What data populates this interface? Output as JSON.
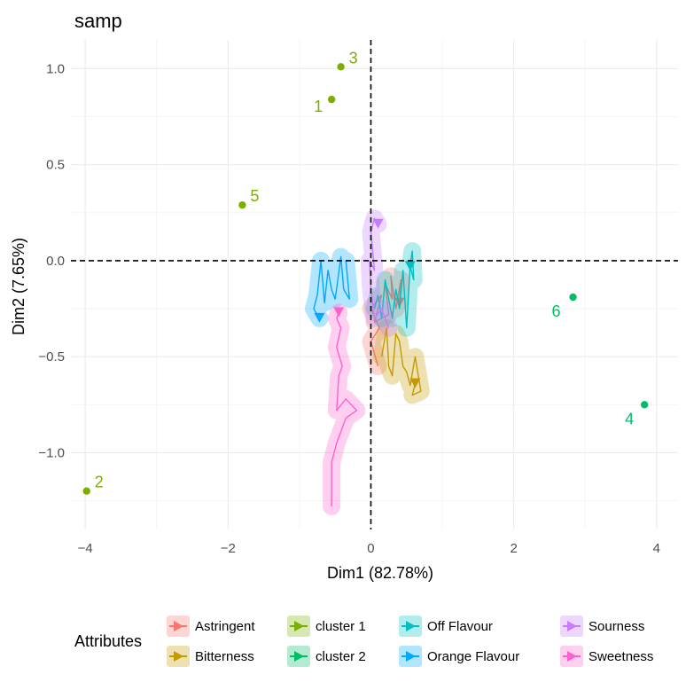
{
  "chart_data": {
    "type": "scatter",
    "title": "samp",
    "xlabel": "Dim1 (82.78%)",
    "ylabel": "Dim2 (7.65%)",
    "xlim": [
      -4.2,
      4.3
    ],
    "ylim": [
      -1.4,
      1.15
    ],
    "x_ticks": [
      -4,
      -2,
      0,
      2,
      4
    ],
    "x_tick_labels": [
      "−4",
      "−2",
      "0",
      "2",
      "4"
    ],
    "y_ticks": [
      -1.0,
      -0.5,
      0.0,
      0.5,
      1.0
    ],
    "y_tick_labels": [
      "−1.0",
      "−0.5",
      "0.0",
      "0.5",
      "1.0"
    ],
    "grid": true,
    "reference_lines": {
      "x": 0,
      "y": 0,
      "style": "dashed"
    },
    "legend_title": "Attributes",
    "legend_position": "bottom",
    "colors": {
      "Astringent": "#F8766D",
      "Bitterness": "#C49A00",
      "cluster 1": "#7CAE00",
      "cluster 2": "#00BE67",
      "Off Flavour": "#00BFC4",
      "Orange Flavour": "#00A9FF",
      "Sourness": "#C77CFF",
      "Sweetness": "#FF61CC"
    },
    "legend": [
      "Astringent",
      "Bitterness",
      "cluster 1",
      "cluster 2",
      "Off Flavour",
      "Orange Flavour",
      "Sourness",
      "Sweetness"
    ],
    "points": [
      {
        "label": "1",
        "x": -0.55,
        "y": 0.84,
        "group": "cluster 1"
      },
      {
        "label": "3",
        "x": -0.42,
        "y": 1.01,
        "group": "cluster 1"
      },
      {
        "label": "5",
        "x": -1.8,
        "y": 0.29,
        "group": "cluster 1"
      },
      {
        "label": "2",
        "x": -3.98,
        "y": -1.2,
        "group": "cluster 1"
      },
      {
        "label": "6",
        "x": 2.83,
        "y": -0.19,
        "group": "cluster 2"
      },
      {
        "label": "4",
        "x": 3.83,
        "y": -0.75,
        "group": "cluster 2"
      }
    ],
    "trajectories": [
      {
        "name": "Astringent",
        "end": [
          0.4,
          -0.22
        ],
        "path": [
          [
            0.1,
            -0.55
          ],
          [
            0.0,
            -0.42
          ],
          [
            0.12,
            -0.35
          ],
          [
            0.0,
            -0.25
          ],
          [
            0.15,
            -0.18
          ],
          [
            0.05,
            -0.32
          ],
          [
            0.25,
            -0.28
          ],
          [
            0.2,
            -0.12
          ],
          [
            0.3,
            -0.2
          ],
          [
            0.28,
            -0.08
          ],
          [
            0.35,
            -0.25
          ],
          [
            0.42,
            -0.1
          ],
          [
            0.4,
            -0.22
          ]
        ]
      },
      {
        "name": "Bitterness",
        "end": [
          0.62,
          -0.64
        ],
        "path": [
          [
            0.15,
            -0.5
          ],
          [
            0.22,
            -0.35
          ],
          [
            0.25,
            -0.55
          ],
          [
            0.3,
            -0.6
          ],
          [
            0.35,
            -0.38
          ],
          [
            0.4,
            -0.42
          ],
          [
            0.45,
            -0.55
          ],
          [
            0.5,
            -0.58
          ],
          [
            0.55,
            -0.65
          ],
          [
            0.62,
            -0.5
          ],
          [
            0.7,
            -0.68
          ],
          [
            0.58,
            -0.7
          ],
          [
            0.62,
            -0.64
          ]
        ]
      },
      {
        "name": "Off Flavour",
        "end": [
          0.55,
          -0.03
        ],
        "path": [
          [
            0.05,
            -0.25
          ],
          [
            0.1,
            -0.18
          ],
          [
            0.15,
            -0.3
          ],
          [
            0.2,
            -0.1
          ],
          [
            0.3,
            -0.3
          ],
          [
            0.35,
            -0.15
          ],
          [
            0.4,
            -0.25
          ],
          [
            0.45,
            -0.05
          ],
          [
            0.5,
            -0.35
          ],
          [
            0.55,
            -0.02
          ],
          [
            0.58,
            0.05
          ],
          [
            0.6,
            -0.1
          ],
          [
            0.55,
            -0.03
          ]
        ]
      },
      {
        "name": "Orange Flavour",
        "end": [
          -0.72,
          -0.3
        ],
        "path": [
          [
            -0.35,
            -0.0
          ],
          [
            -0.3,
            -0.2
          ],
          [
            -0.38,
            -0.15
          ],
          [
            -0.42,
            0.02
          ],
          [
            -0.5,
            -0.2
          ],
          [
            -0.55,
            -0.15
          ],
          [
            -0.6,
            -0.05
          ],
          [
            -0.65,
            -0.22
          ],
          [
            -0.7,
            0.0
          ],
          [
            -0.75,
            -0.18
          ],
          [
            -0.8,
            -0.25
          ],
          [
            -0.72,
            -0.3
          ]
        ]
      },
      {
        "name": "Sourness",
        "end": [
          0.1,
          0.19
        ],
        "path": [
          [
            0.25,
            -0.35
          ],
          [
            0.15,
            -0.25
          ],
          [
            0.05,
            -0.3
          ],
          [
            0.0,
            -0.15
          ],
          [
            -0.02,
            0.0
          ],
          [
            0.05,
            -0.05
          ],
          [
            0.0,
            0.15
          ],
          [
            0.05,
            0.22
          ],
          [
            0.1,
            0.19
          ]
        ]
      },
      {
        "name": "Sweetness",
        "end": [
          -0.45,
          -0.27
        ],
        "path": [
          [
            -0.55,
            -1.28
          ],
          [
            -0.55,
            -1.05
          ],
          [
            -0.48,
            -0.95
          ],
          [
            -0.35,
            -0.82
          ],
          [
            -0.2,
            -0.78
          ],
          [
            -0.35,
            -0.72
          ],
          [
            -0.48,
            -0.78
          ],
          [
            -0.45,
            -0.6
          ],
          [
            -0.4,
            -0.55
          ],
          [
            -0.48,
            -0.45
          ],
          [
            -0.42,
            -0.35
          ],
          [
            -0.48,
            -0.3
          ],
          [
            -0.45,
            -0.27
          ]
        ]
      }
    ]
  }
}
